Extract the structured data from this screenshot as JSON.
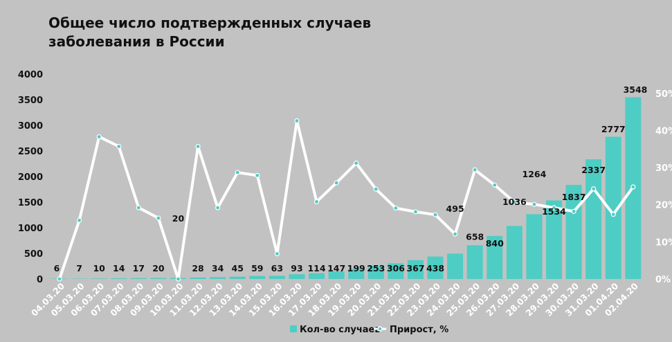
{
  "chart_data": {
    "type": "bar+line",
    "title_lines": [
      "Общее число подтвержденных случаев",
      "заболевания в России"
    ],
    "categories": [
      "04.03.20",
      "05.03.20",
      "06.03.20",
      "07.03.20",
      "08.03.20",
      "09.03.20",
      "10.03.20",
      "11.03.20",
      "12.03.20",
      "13.03.20",
      "14.03.20",
      "15.03.20",
      "16.03.20",
      "17.03.20",
      "18.03.20",
      "19.03.20",
      "20.03.20",
      "21.03.20",
      "22.03.20",
      "23.03.20",
      "24.03.20",
      "25.03.20",
      "26.03.20",
      "27.03.20",
      "28.03.20",
      "29.03.20",
      "30.03.20",
      "31.03.20",
      "01.04.20",
      "02.04.20"
    ],
    "series": [
      {
        "name": "Кол-во случаев",
        "type": "bar",
        "axis": "left",
        "color": "#4ecdc4",
        "values": [
          6,
          7,
          10,
          14,
          17,
          20,
          20,
          28,
          34,
          45,
          59,
          63,
          93,
          114,
          147,
          199,
          253,
          306,
          367,
          438,
          495,
          658,
          840,
          1036,
          1264,
          1534,
          1837,
          2337,
          2777,
          3548
        ]
      },
      {
        "name": "Прирост, %",
        "type": "line",
        "axis": "right",
        "color": "#ffffff",
        "marker_color": "#4ecdc4",
        "values": [
          0,
          15.8,
          38.3,
          35.7,
          19.2,
          16.4,
          0,
          35.7,
          19.2,
          28.7,
          27.9,
          6.8,
          42.6,
          20.8,
          25.9,
          31.2,
          24.2,
          19.1,
          18.1,
          17.3,
          12.1,
          29.4,
          25.3,
          20.7,
          20.1,
          19.2,
          18.2,
          24.3,
          17.4,
          24.8
        ]
      }
    ],
    "y_left": {
      "min": 0,
      "max": 4000,
      "ticks": [
        "0",
        "500",
        "1000",
        "1500",
        "2000",
        "2500",
        "3000",
        "3500",
        "4000"
      ]
    },
    "y_right": {
      "min": 0,
      "max": 55,
      "ticks": [
        "0%",
        "10%",
        "20%",
        "30%",
        "40%",
        "50%"
      ]
    },
    "grid": false,
    "legend_position": "bottom-center",
    "colors": {
      "background": "#c2c2c2",
      "bar": "#4ecdc4",
      "line": "#ffffff",
      "label": "#111111",
      "right_axis_text": "#ffffff"
    }
  }
}
